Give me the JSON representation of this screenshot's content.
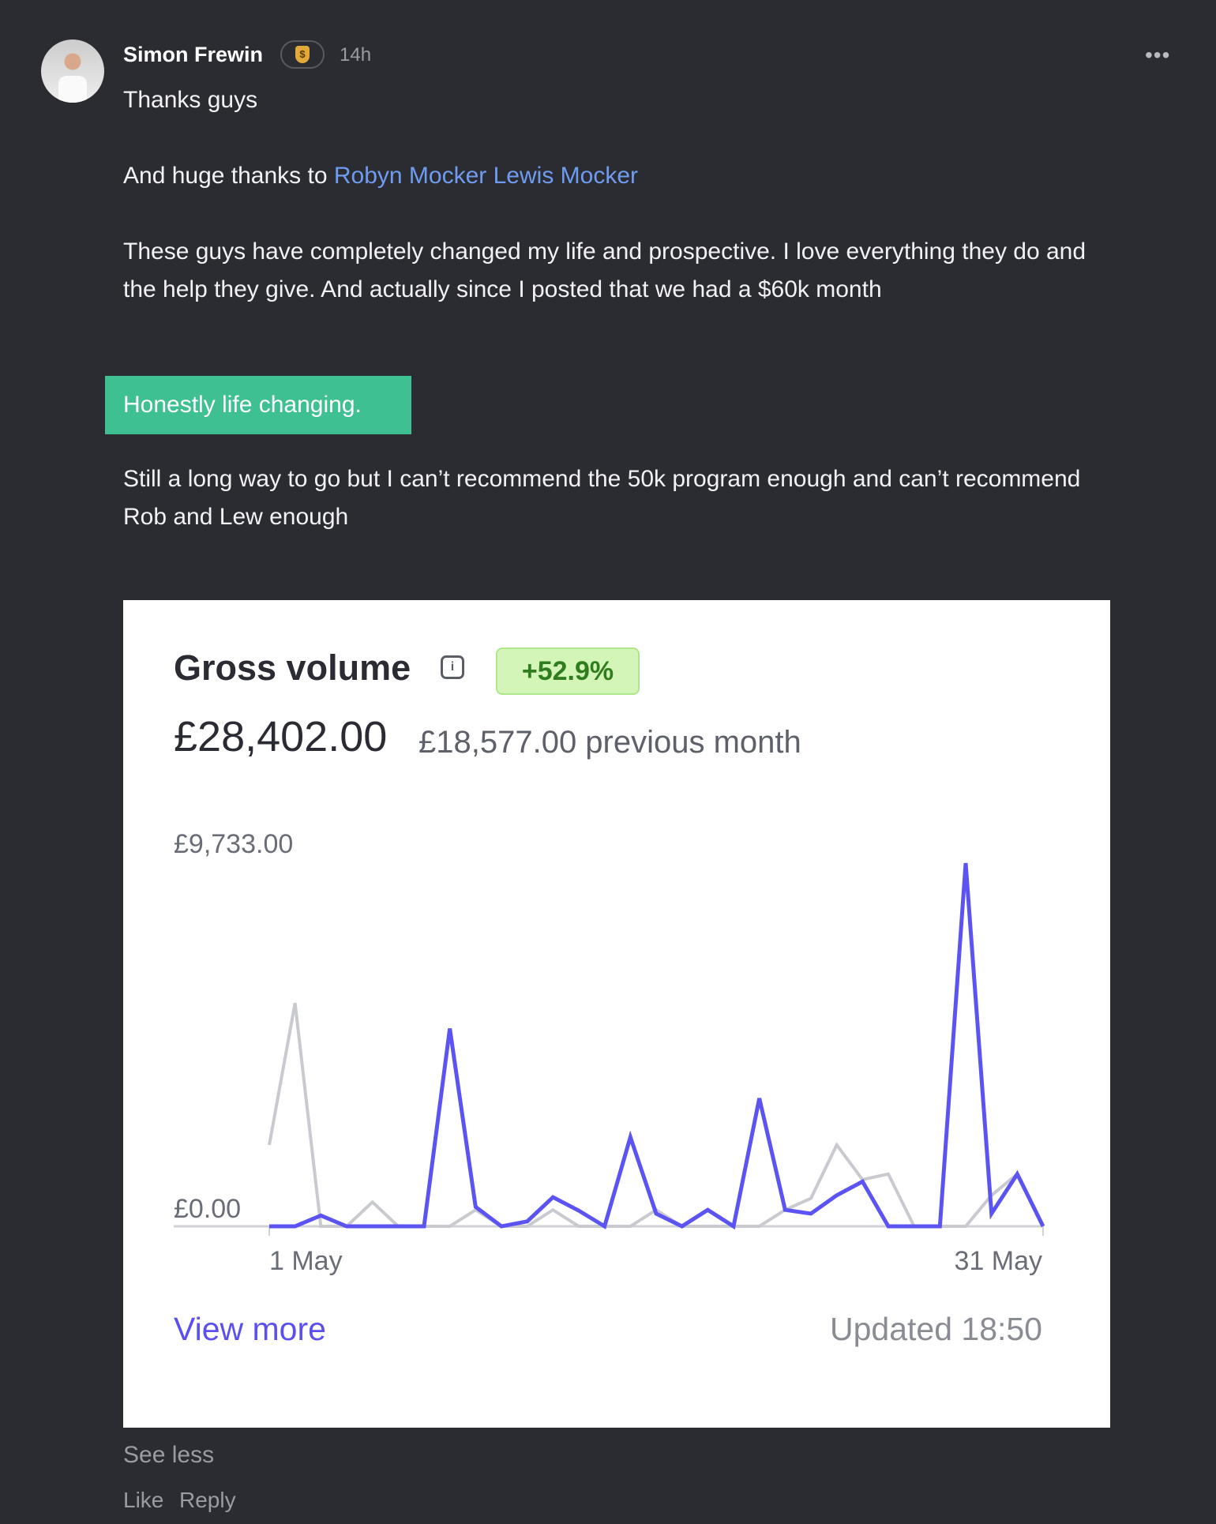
{
  "post": {
    "author": "Simon Frewin",
    "badge_icon": "dollar-shield-icon",
    "time": "14h",
    "more_icon": "ellipsis-icon",
    "line1": "Thanks guys",
    "line2_prefix": "And huge thanks to ",
    "mention1": "Robyn Mocker",
    "mention2": "Lewis Mocker",
    "line3": "These guys have completely changed my life and prospective. I love everything they do and the help they give. And actually since I posted that we had a $60k month",
    "highlight": "Honestly life changing.",
    "line4": "Still a long way to go but I can’t recommend the 50k program enough and can’t recommend Rob and Lew enough",
    "see_less": "See less",
    "like": "Like",
    "reply": "Reply",
    "colors": {
      "link": "#6f9cf0",
      "highlight_bg": "#3ec093",
      "background": "#2b2c32"
    }
  },
  "card": {
    "title": "Gross volume",
    "info_icon": "info-icon",
    "change": "+52.9%",
    "amount": "£28,402.00",
    "previous": "£18,577.00 previous month",
    "view_more": "View more",
    "updated": "Updated 18:50"
  },
  "chart_data": {
    "type": "line",
    "x": [
      1,
      2,
      3,
      4,
      5,
      6,
      7,
      8,
      9,
      10,
      11,
      12,
      13,
      14,
      15,
      16,
      17,
      18,
      19,
      20,
      21,
      22,
      23,
      24,
      25,
      26,
      27,
      28,
      29,
      30,
      31
    ],
    "x_tick_labels": [
      "1 May",
      "31 May"
    ],
    "y_tick_labels": [
      "£0.00",
      "£9,733.00"
    ],
    "ylim": [
      0,
      9733
    ],
    "grid": false,
    "series": [
      {
        "color": "#c8cad0",
        "values": [
          2180,
          5980,
          0,
          0,
          650,
          0,
          0,
          0,
          440,
          0,
          0,
          440,
          0,
          0,
          0,
          440,
          0,
          0,
          0,
          0,
          440,
          750,
          2180,
          1250,
          1400,
          0,
          0,
          0,
          830,
          1400,
          null
        ]
      },
      {
        "color": "#5b54f2",
        "values": [
          0,
          0,
          290,
          0,
          0,
          0,
          0,
          5300,
          520,
          0,
          130,
          780,
          420,
          0,
          2390,
          340,
          0,
          440,
          0,
          3430,
          440,
          340,
          830,
          1200,
          0,
          0,
          0,
          9733,
          340,
          1400,
          0
        ]
      }
    ]
  }
}
